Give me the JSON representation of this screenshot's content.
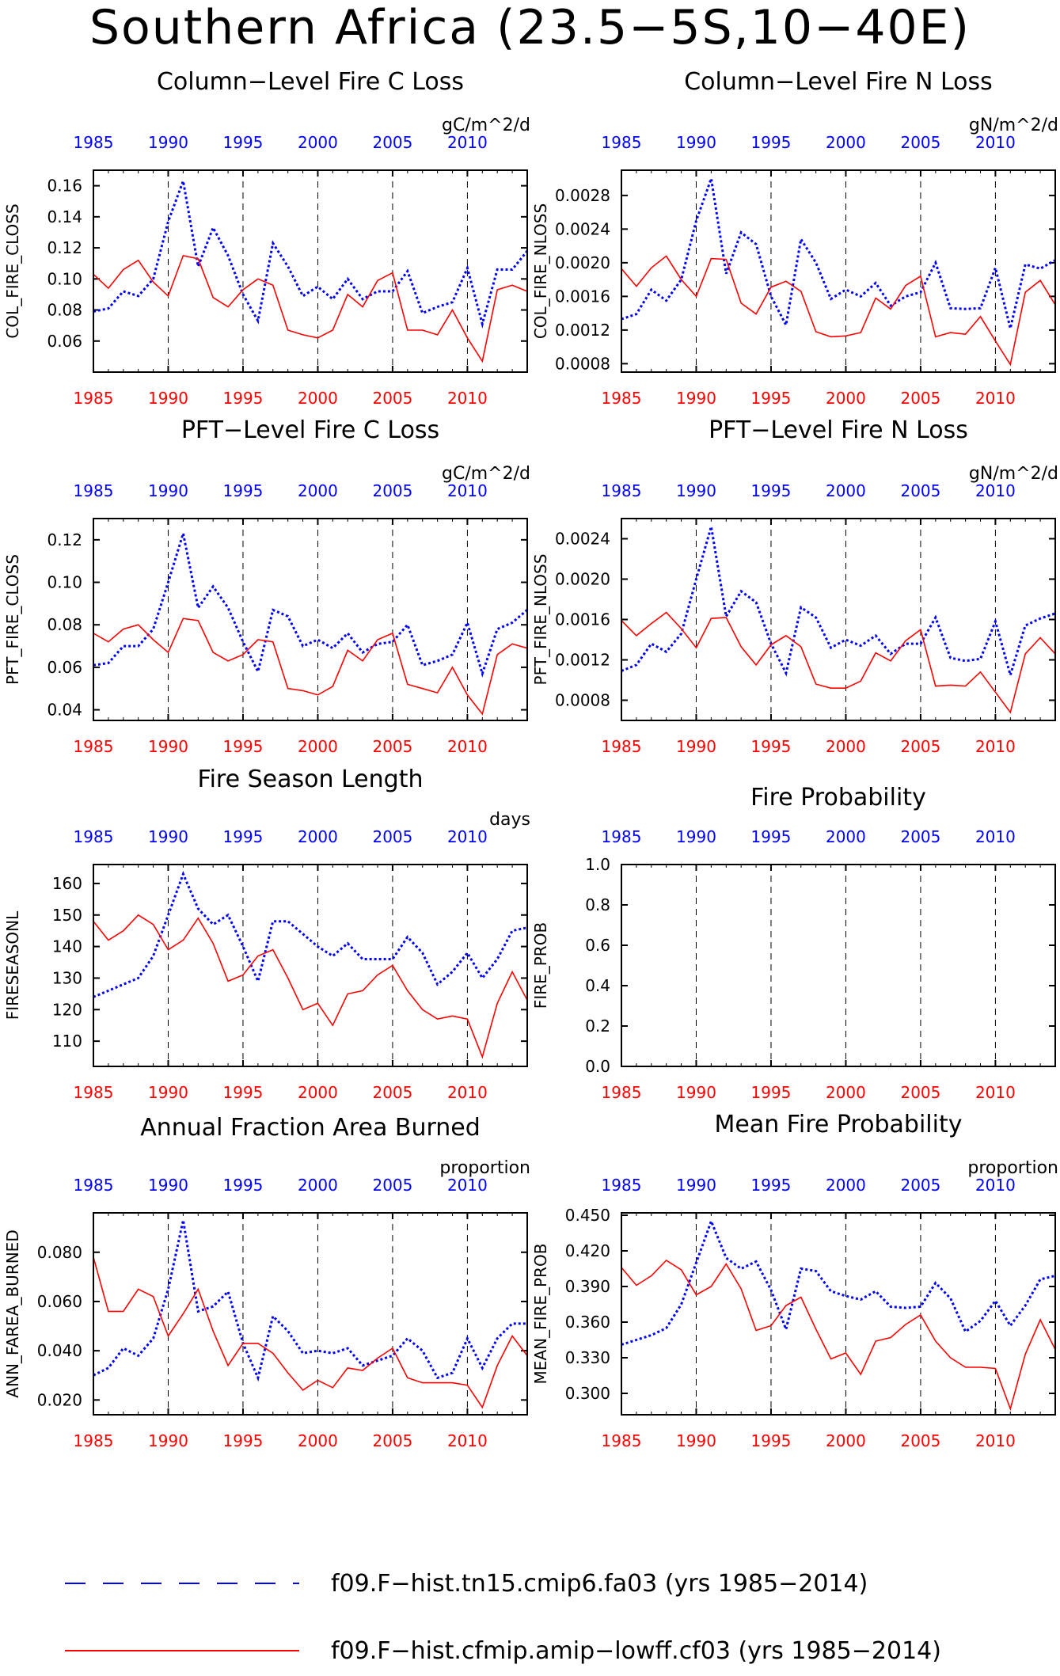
{
  "title": "Southern Africa (23.5−5S,10−40E)",
  "colors": {
    "series1": "#0000ff",
    "series2": "#ff0000",
    "axis": "#000000"
  },
  "legend": [
    {
      "label": "f09.F−hist.tn15.cmip6.fa03 (yrs 1985−2014)",
      "color": "#0000ff",
      "style": "dashed"
    },
    {
      "label": "f09.F−hist.cfmip.amip−lowff.cf03 (yrs 1985−2014)",
      "color": "#ff0000",
      "style": "solid"
    }
  ],
  "chart_data": [
    {
      "type": "line",
      "title": "Column−Level Fire C Loss",
      "ylabel": "COL_FIRE_CLOSS",
      "units": "gC/m^2/d",
      "xlim": [
        1985,
        2014
      ],
      "ylim": [
        0.04,
        0.17
      ],
      "yticks": [
        "0.06",
        "0.08",
        "0.10",
        "0.12",
        "0.14",
        "0.16"
      ],
      "xticks": [
        1985,
        1990,
        1995,
        2000,
        2005,
        2010
      ],
      "x": [
        1985,
        1986,
        1987,
        1988,
        1989,
        1990,
        1991,
        1992,
        1993,
        1994,
        1995,
        1996,
        1997,
        1998,
        1999,
        2000,
        2001,
        2002,
        2003,
        2004,
        2005,
        2006,
        2007,
        2008,
        2009,
        2010,
        2011,
        2012,
        2013,
        2014
      ],
      "series": [
        {
          "values": [
            0.079,
            0.081,
            0.092,
            0.089,
            0.1,
            0.137,
            0.163,
            0.108,
            0.133,
            0.115,
            0.09,
            0.073,
            0.123,
            0.108,
            0.089,
            0.095,
            0.087,
            0.1,
            0.087,
            0.092,
            0.092,
            0.105,
            0.078,
            0.082,
            0.085,
            0.107,
            0.071,
            0.106,
            0.106,
            0.118
          ]
        },
        {
          "values": [
            0.103,
            0.094,
            0.106,
            0.112,
            0.098,
            0.089,
            0.115,
            0.113,
            0.088,
            0.082,
            0.093,
            0.1,
            0.096,
            0.067,
            0.064,
            0.062,
            0.067,
            0.09,
            0.082,
            0.099,
            0.104,
            0.067,
            0.067,
            0.064,
            0.08,
            0.062,
            0.047,
            0.093,
            0.096,
            0.092
          ]
        }
      ]
    },
    {
      "type": "line",
      "title": "Column−Level Fire N Loss",
      "ylabel": "COL_FIRE_NLOSS",
      "units": "gN/m^2/d",
      "xlim": [
        1985,
        2014
      ],
      "ylim": [
        0.0007,
        0.0031
      ],
      "yticks": [
        "0.0008",
        "0.0012",
        "0.0016",
        "0.0020",
        "0.0024",
        "0.0028"
      ],
      "xticks": [
        1985,
        1990,
        1995,
        2000,
        2005,
        2010
      ],
      "x": [
        1985,
        1986,
        1987,
        1988,
        1989,
        1990,
        1991,
        1992,
        1993,
        1994,
        1995,
        1996,
        1997,
        1998,
        1999,
        2000,
        2001,
        2002,
        2003,
        2004,
        2005,
        2006,
        2007,
        2008,
        2009,
        2010,
        2011,
        2012,
        2013,
        2014
      ],
      "series": [
        {
          "values": [
            0.00133,
            0.00139,
            0.00168,
            0.00155,
            0.0018,
            0.0025,
            0.003,
            0.00187,
            0.00236,
            0.00222,
            0.0016,
            0.00126,
            0.00228,
            0.002,
            0.00157,
            0.00168,
            0.0016,
            0.00176,
            0.00149,
            0.0016,
            0.00165,
            0.002,
            0.00146,
            0.00145,
            0.00146,
            0.00194,
            0.00122,
            0.00198,
            0.00193,
            0.00203
          ]
        },
        {
          "values": [
            0.00193,
            0.00172,
            0.00194,
            0.00208,
            0.0018,
            0.0016,
            0.00205,
            0.00204,
            0.00152,
            0.00139,
            0.00171,
            0.00178,
            0.00166,
            0.00118,
            0.00112,
            0.00113,
            0.00117,
            0.00158,
            0.00145,
            0.00173,
            0.00184,
            0.00112,
            0.00117,
            0.00115,
            0.00136,
            0.00107,
            0.00079,
            0.00165,
            0.00179,
            0.0015
          ]
        }
      ]
    },
    {
      "type": "line",
      "title": "PFT−Level Fire C Loss",
      "ylabel": "PFT_FIRE_CLOSS",
      "units": "gC/m^2/d",
      "xlim": [
        1985,
        2014
      ],
      "ylim": [
        0.035,
        0.13
      ],
      "yticks": [
        "0.04",
        "0.06",
        "0.08",
        "0.10",
        "0.12"
      ],
      "xticks": [
        1985,
        1990,
        1995,
        2000,
        2005,
        2010
      ],
      "x": [
        1985,
        1986,
        1987,
        1988,
        1989,
        1990,
        1991,
        1992,
        1993,
        1994,
        1995,
        1996,
        1997,
        1998,
        1999,
        2000,
        2001,
        2002,
        2003,
        2004,
        2005,
        2006,
        2007,
        2008,
        2009,
        2010,
        2011,
        2012,
        2013,
        2014
      ],
      "series": [
        {
          "values": [
            0.061,
            0.062,
            0.07,
            0.07,
            0.078,
            0.1,
            0.123,
            0.088,
            0.098,
            0.088,
            0.072,
            0.058,
            0.087,
            0.084,
            0.07,
            0.073,
            0.069,
            0.076,
            0.067,
            0.071,
            0.072,
            0.08,
            0.061,
            0.063,
            0.066,
            0.081,
            0.057,
            0.078,
            0.081,
            0.087
          ]
        },
        {
          "values": [
            0.076,
            0.072,
            0.078,
            0.08,
            0.073,
            0.067,
            0.083,
            0.082,
            0.067,
            0.063,
            0.066,
            0.073,
            0.072,
            0.05,
            0.049,
            0.047,
            0.051,
            0.068,
            0.063,
            0.073,
            0.076,
            0.052,
            0.05,
            0.048,
            0.06,
            0.047,
            0.038,
            0.066,
            0.071,
            0.069
          ]
        }
      ]
    },
    {
      "type": "line",
      "title": "PFT−Level Fire N Loss",
      "ylabel": "PFT_FIRE_NLOSS",
      "units": "gN/m^2/d",
      "xlim": [
        1985,
        2014
      ],
      "ylim": [
        0.0006,
        0.0026
      ],
      "yticks": [
        "0.0008",
        "0.0012",
        "0.0016",
        "0.0020",
        "0.0024"
      ],
      "xticks": [
        1985,
        1990,
        1995,
        2000,
        2005,
        2010
      ],
      "x": [
        1985,
        1986,
        1987,
        1988,
        1989,
        1990,
        1991,
        1992,
        1993,
        1994,
        1995,
        1996,
        1997,
        1998,
        1999,
        2000,
        2001,
        2002,
        2003,
        2004,
        2005,
        2006,
        2007,
        2008,
        2009,
        2010,
        2011,
        2012,
        2013,
        2014
      ],
      "series": [
        {
          "values": [
            0.00109,
            0.00115,
            0.00136,
            0.00128,
            0.00146,
            0.002,
            0.00252,
            0.00163,
            0.00188,
            0.00177,
            0.00136,
            0.00107,
            0.00172,
            0.00162,
            0.00132,
            0.0014,
            0.00134,
            0.00144,
            0.00126,
            0.00136,
            0.00136,
            0.00162,
            0.00122,
            0.00119,
            0.00121,
            0.00158,
            0.00105,
            0.00154,
            0.00161,
            0.00166
          ]
        },
        {
          "values": [
            0.00159,
            0.00144,
            0.00156,
            0.00167,
            0.00151,
            0.00132,
            0.00161,
            0.00162,
            0.00133,
            0.00115,
            0.00135,
            0.00144,
            0.00133,
            0.00096,
            0.00092,
            0.00092,
            0.00099,
            0.00127,
            0.00119,
            0.00139,
            0.0015,
            0.00094,
            0.00095,
            0.00094,
            0.00108,
            0.00088,
            0.00068,
            0.00126,
            0.00142,
            0.00126
          ]
        }
      ]
    },
    {
      "type": "line",
      "title": "Fire Season Length",
      "ylabel": "FIRESEASONL",
      "units": "days",
      "xlim": [
        1985,
        2014
      ],
      "ylim": [
        102,
        166
      ],
      "yticks": [
        "110",
        "120",
        "130",
        "140",
        "150",
        "160"
      ],
      "xticks": [
        1985,
        1990,
        1995,
        2000,
        2005,
        2010
      ],
      "x": [
        1985,
        1986,
        1987,
        1988,
        1989,
        1990,
        1991,
        1992,
        1993,
        1994,
        1995,
        1996,
        1997,
        1998,
        1999,
        2000,
        2001,
        2002,
        2003,
        2004,
        2005,
        2006,
        2007,
        2008,
        2009,
        2010,
        2011,
        2012,
        2013,
        2014
      ],
      "series": [
        {
          "values": [
            124,
            126,
            128,
            130,
            137,
            150,
            163,
            152,
            147,
            150,
            140,
            129,
            148,
            148,
            144,
            140,
            137,
            141,
            136,
            136,
            136,
            143,
            138,
            128,
            132,
            138,
            130,
            136,
            145,
            146
          ]
        },
        {
          "values": [
            148,
            142,
            145,
            150,
            147,
            139,
            142,
            149,
            141,
            129,
            131,
            137,
            139,
            130,
            120,
            122,
            115,
            125,
            126,
            131,
            134,
            126,
            120,
            117,
            118,
            117,
            105,
            122,
            132,
            123
          ]
        }
      ]
    },
    {
      "type": "line",
      "title": "Fire Probability",
      "ylabel": "FIRE_PROB",
      "units": "",
      "xlim": [
        1985,
        2014
      ],
      "ylim": [
        0.0,
        1.0
      ],
      "yticks": [
        "0.0",
        "0.2",
        "0.4",
        "0.6",
        "0.8",
        "1.0"
      ],
      "xticks": [
        1985,
        1990,
        1995,
        2000,
        2005,
        2010
      ],
      "x": [],
      "series": []
    },
    {
      "type": "line",
      "title": "Annual Fraction Area Burned",
      "ylabel": "ANN_FAREA_BURNED",
      "units": "proportion",
      "xlim": [
        1985,
        2014
      ],
      "ylim": [
        0.014,
        0.096
      ],
      "yticks": [
        "0.020",
        "0.040",
        "0.060",
        "0.080"
      ],
      "xticks": [
        1985,
        1990,
        1995,
        2000,
        2005,
        2010
      ],
      "x": [
        1985,
        1986,
        1987,
        1988,
        1989,
        1990,
        1991,
        1992,
        1993,
        1994,
        1995,
        1996,
        1997,
        1998,
        1999,
        2000,
        2001,
        2002,
        2003,
        2004,
        2005,
        2006,
        2007,
        2008,
        2009,
        2010,
        2011,
        2012,
        2013,
        2014
      ],
      "series": [
        {
          "values": [
            0.03,
            0.033,
            0.041,
            0.038,
            0.045,
            0.065,
            0.093,
            0.056,
            0.058,
            0.064,
            0.043,
            0.029,
            0.054,
            0.048,
            0.039,
            0.04,
            0.039,
            0.041,
            0.034,
            0.036,
            0.038,
            0.045,
            0.04,
            0.029,
            0.031,
            0.045,
            0.033,
            0.045,
            0.051,
            0.051
          ]
        },
        {
          "values": [
            0.078,
            0.056,
            0.056,
            0.065,
            0.062,
            0.046,
            0.055,
            0.065,
            0.048,
            0.034,
            0.043,
            0.043,
            0.039,
            0.031,
            0.024,
            0.028,
            0.025,
            0.033,
            0.032,
            0.037,
            0.041,
            0.029,
            0.027,
            0.027,
            0.027,
            0.026,
            0.017,
            0.034,
            0.046,
            0.038
          ]
        }
      ]
    },
    {
      "type": "line",
      "title": "Mean Fire Probability",
      "ylabel": "MEAN_FIRE_PROB",
      "units": "proportion",
      "xlim": [
        1985,
        2014
      ],
      "ylim": [
        0.282,
        0.452
      ],
      "yticks": [
        "0.300",
        "0.330",
        "0.360",
        "0.390",
        "0.420",
        "0.450"
      ],
      "xticks": [
        1985,
        1990,
        1995,
        2000,
        2005,
        2010
      ],
      "x": [
        1985,
        1986,
        1987,
        1988,
        1989,
        1990,
        1991,
        1992,
        1993,
        1994,
        1995,
        1996,
        1997,
        1998,
        1999,
        2000,
        2001,
        2002,
        2003,
        2004,
        2005,
        2006,
        2007,
        2008,
        2009,
        2010,
        2011,
        2012,
        2013,
        2014
      ],
      "series": [
        {
          "values": [
            0.341,
            0.345,
            0.349,
            0.355,
            0.375,
            0.41,
            0.445,
            0.414,
            0.405,
            0.411,
            0.387,
            0.354,
            0.405,
            0.403,
            0.386,
            0.382,
            0.379,
            0.386,
            0.373,
            0.372,
            0.373,
            0.393,
            0.38,
            0.352,
            0.361,
            0.378,
            0.357,
            0.374,
            0.396,
            0.399
          ]
        },
        {
          "values": [
            0.406,
            0.391,
            0.399,
            0.412,
            0.404,
            0.383,
            0.39,
            0.409,
            0.388,
            0.353,
            0.357,
            0.374,
            0.381,
            0.354,
            0.329,
            0.334,
            0.316,
            0.344,
            0.347,
            0.358,
            0.366,
            0.344,
            0.33,
            0.322,
            0.322,
            0.321,
            0.287,
            0.333,
            0.362,
            0.337
          ]
        }
      ]
    }
  ]
}
